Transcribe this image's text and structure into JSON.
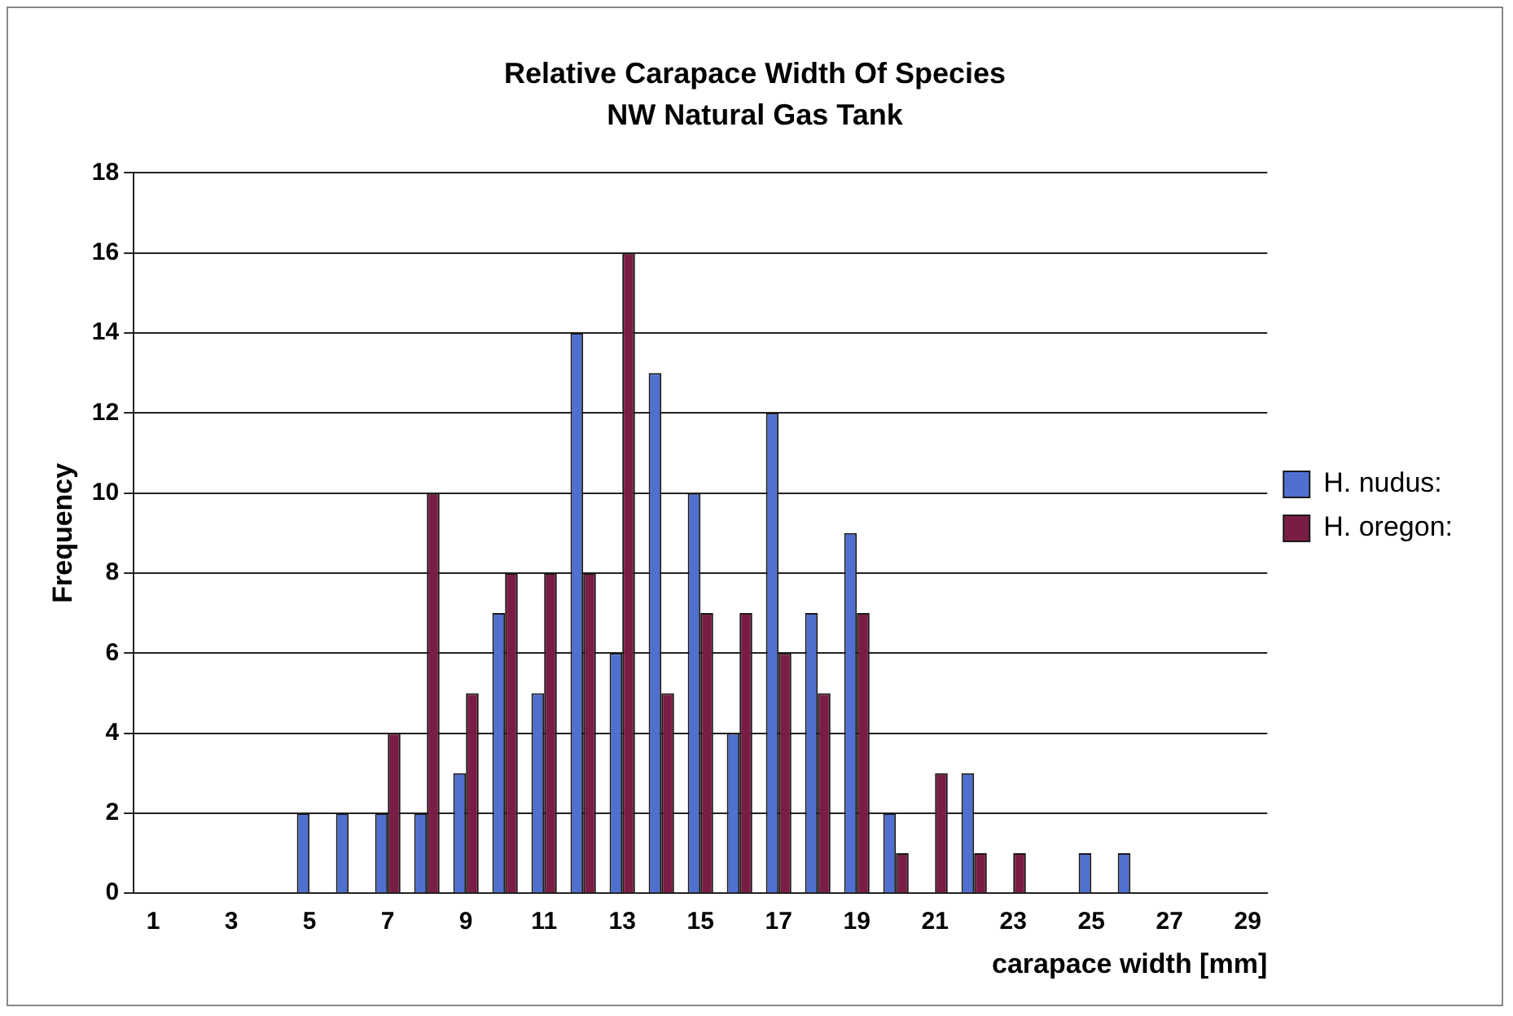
{
  "chart_data": {
    "type": "bar",
    "title": "Relative Carapace Width Of Species",
    "subtitle": "NW Natural Gas Tank",
    "xlabel": "carapace width [mm]",
    "ylabel": "Frequency",
    "x": [
      1,
      2,
      3,
      4,
      5,
      6,
      7,
      8,
      9,
      10,
      11,
      12,
      13,
      14,
      15,
      16,
      17,
      18,
      19,
      20,
      21,
      22,
      23,
      24,
      25,
      26,
      27,
      28,
      29
    ],
    "xlim": [
      0.5,
      29.5
    ],
    "xticks": [
      1,
      3,
      5,
      7,
      9,
      11,
      13,
      15,
      17,
      19,
      21,
      23,
      25,
      27,
      29
    ],
    "series": [
      {
        "name": "H. nudus:",
        "color": "#5070d0",
        "values": [
          0,
          0,
          0,
          0,
          2,
          2,
          2,
          2,
          3,
          7,
          5,
          14,
          6,
          13,
          10,
          4,
          12,
          7,
          9,
          2,
          0,
          3,
          0,
          0,
          1,
          1,
          0,
          0,
          0
        ]
      },
      {
        "name": "H. oregon:",
        "color": "#7a1d45",
        "values": [
          0,
          0,
          0,
          0,
          0,
          0,
          4,
          10,
          5,
          8,
          8,
          8,
          16,
          5,
          7,
          7,
          6,
          5,
          7,
          1,
          3,
          1,
          1,
          0,
          0,
          0,
          0,
          0,
          0
        ]
      }
    ],
    "ylim": [
      0,
      18
    ],
    "yticks": [
      0,
      2,
      4,
      6,
      8,
      10,
      12,
      14,
      16,
      18
    ],
    "grid": "y",
    "legend": "right"
  }
}
